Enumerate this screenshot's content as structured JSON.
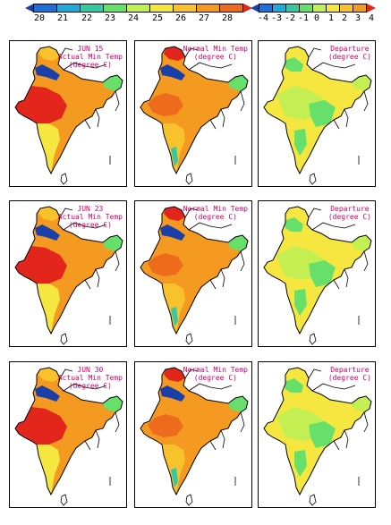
{
  "colorbar_left": {
    "ticks": [
      "20",
      "21",
      "22",
      "23",
      "24",
      "25",
      "26",
      "27",
      "28"
    ],
    "colors": [
      "#1a3fa8",
      "#1f6fd6",
      "#21a9d9",
      "#34c9a3",
      "#66e06a",
      "#c4ef52",
      "#f5e640",
      "#f7c22c",
      "#f49a20",
      "#ee6a1c",
      "#e2261c"
    ]
  },
  "colorbar_right": {
    "ticks": [
      "-4",
      "-3",
      "-2",
      "-1",
      "0",
      "1",
      "2",
      "3",
      "4"
    ],
    "colors": [
      "#1a3fa8",
      "#1f6fd6",
      "#21a9d9",
      "#34c9a3",
      "#66e06a",
      "#c4ef52",
      "#f5e640",
      "#f7c22c",
      "#f49a20",
      "#e2261c"
    ]
  },
  "rows": [
    {
      "date": "JUN 15",
      "actual_label": [
        "Actual Min Temp",
        "(degree C)"
      ],
      "normal_label": [
        "Normal Min Temp",
        "(degree C)"
      ],
      "departure_label": [
        "Departure",
        "(degree C)"
      ]
    },
    {
      "date": "JUN 23",
      "actual_label": [
        "Actual Min Temp",
        "(degree C)"
      ],
      "normal_label": [
        "Normal Min Temp",
        "(degree C)"
      ],
      "departure_label": [
        "Departure",
        "(degree C)"
      ]
    },
    {
      "date": "JUN 30",
      "actual_label": [
        "Actual Min Temp",
        "(degree C)"
      ],
      "normal_label": [
        "Normal Min Temp",
        "(degree C)"
      ],
      "departure_label": [
        "Departure",
        "(degree C)"
      ]
    }
  ]
}
